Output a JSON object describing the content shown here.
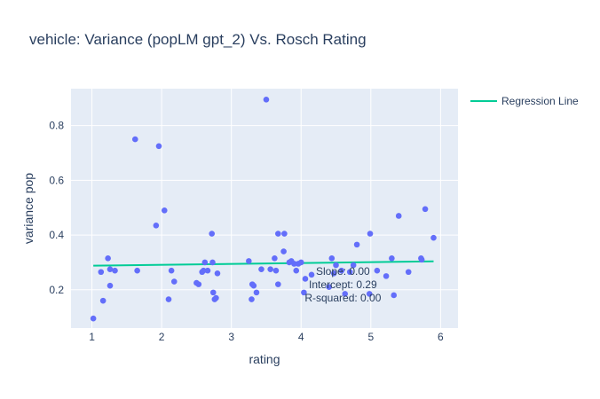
{
  "chart_data": {
    "type": "scatter",
    "title": "vehicle: Variance (popLM gpt_2) Vs. Rosch Rating",
    "xlabel": "rating",
    "ylabel": "variance pop",
    "xlim": [
      0.7,
      6.25
    ],
    "ylim": [
      0.06,
      0.935
    ],
    "x_ticks": [
      1,
      2,
      3,
      4,
      5,
      6
    ],
    "y_ticks": [
      0.2,
      0.4,
      0.6,
      0.8
    ],
    "grid": true,
    "legend_position": "top-right",
    "colors": {
      "background": "#e5ecf6",
      "grid": "#ffffff",
      "points": "#636efa",
      "regression": "#00cc96"
    },
    "series": [
      {
        "type": "scatter",
        "points": [
          [
            1.02,
            0.095
          ],
          [
            1.13,
            0.265
          ],
          [
            1.16,
            0.16
          ],
          [
            1.23,
            0.315
          ],
          [
            1.26,
            0.215
          ],
          [
            1.26,
            0.275
          ],
          [
            1.33,
            0.27
          ],
          [
            1.62,
            0.75
          ],
          [
            1.65,
            0.27
          ],
          [
            1.92,
            0.435
          ],
          [
            1.96,
            0.725
          ],
          [
            2.04,
            0.49
          ],
          [
            2.1,
            0.165
          ],
          [
            2.14,
            0.27
          ],
          [
            2.18,
            0.23
          ],
          [
            2.5,
            0.225
          ],
          [
            2.53,
            0.22
          ],
          [
            2.58,
            0.265
          ],
          [
            2.6,
            0.27
          ],
          [
            2.62,
            0.3
          ],
          [
            2.66,
            0.27
          ],
          [
            2.72,
            0.405
          ],
          [
            2.73,
            0.3
          ],
          [
            2.74,
            0.19
          ],
          [
            2.76,
            0.165
          ],
          [
            2.78,
            0.17
          ],
          [
            2.8,
            0.26
          ],
          [
            3.25,
            0.305
          ],
          [
            3.29,
            0.165
          ],
          [
            3.3,
            0.22
          ],
          [
            3.32,
            0.215
          ],
          [
            3.36,
            0.19
          ],
          [
            3.43,
            0.275
          ],
          [
            3.5,
            0.895
          ],
          [
            3.56,
            0.275
          ],
          [
            3.62,
            0.315
          ],
          [
            3.64,
            0.27
          ],
          [
            3.67,
            0.405
          ],
          [
            3.67,
            0.22
          ],
          [
            3.75,
            0.34
          ],
          [
            3.76,
            0.405
          ],
          [
            3.83,
            0.3
          ],
          [
            3.86,
            0.305
          ],
          [
            3.9,
            0.295
          ],
          [
            3.93,
            0.27
          ],
          [
            3.96,
            0.295
          ],
          [
            4.0,
            0.3
          ],
          [
            4.04,
            0.19
          ],
          [
            4.06,
            0.24
          ],
          [
            4.15,
            0.255
          ],
          [
            4.4,
            0.21
          ],
          [
            4.44,
            0.315
          ],
          [
            4.47,
            0.26
          ],
          [
            4.5,
            0.29
          ],
          [
            4.58,
            0.27
          ],
          [
            4.63,
            0.185
          ],
          [
            4.7,
            0.265
          ],
          [
            4.75,
            0.29
          ],
          [
            4.8,
            0.365
          ],
          [
            4.98,
            0.185
          ],
          [
            4.99,
            0.405
          ],
          [
            5.09,
            0.27
          ],
          [
            5.22,
            0.25
          ],
          [
            5.3,
            0.315
          ],
          [
            5.33,
            0.18
          ],
          [
            5.4,
            0.47
          ],
          [
            5.54,
            0.265
          ],
          [
            5.72,
            0.315
          ],
          [
            5.73,
            0.31
          ],
          [
            5.78,
            0.495
          ],
          [
            5.9,
            0.39
          ]
        ]
      },
      {
        "type": "line",
        "name": "Regression Line",
        "x": [
          1.02,
          5.9
        ],
        "y": [
          0.288,
          0.304
        ]
      }
    ],
    "annotations": [
      "Slope: 0.00",
      "Intercept: 0.29",
      "R-squared: 0.00"
    ],
    "annotation_anchor": [
      4.6,
      0.255
    ]
  }
}
